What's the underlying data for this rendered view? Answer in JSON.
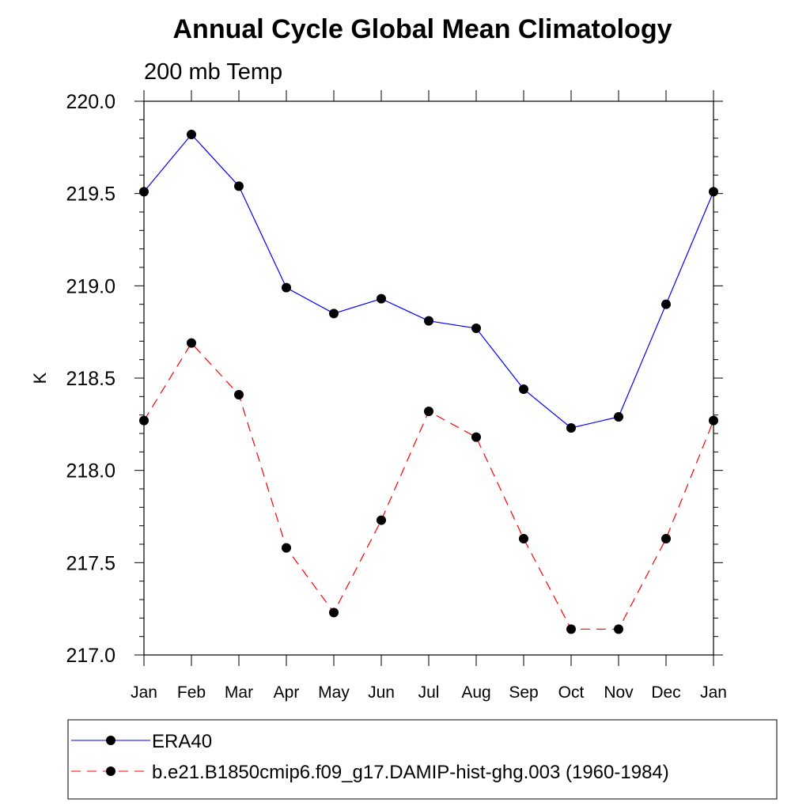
{
  "chart_data": {
    "type": "line",
    "title": "Annual Cycle Global Mean Climatology",
    "subtitle": "200 mb Temp",
    "xlabel": "",
    "ylabel": "K",
    "categories": [
      "Jan",
      "Feb",
      "Mar",
      "Apr",
      "May",
      "Jun",
      "Jul",
      "Aug",
      "Sep",
      "Oct",
      "Nov",
      "Dec",
      "Jan"
    ],
    "ylim": [
      217.0,
      220.0
    ],
    "yticks": [
      "217.0",
      "217.5",
      "218.0",
      "218.5",
      "219.0",
      "219.5",
      "220.0"
    ],
    "grid": false,
    "legend_position": "bottom",
    "series": [
      {
        "name": "ERA40",
        "color": "#0000ff",
        "style": "solid",
        "values": [
          219.51,
          219.82,
          219.54,
          218.99,
          218.85,
          218.93,
          218.81,
          218.77,
          218.44,
          218.23,
          218.29,
          218.9,
          219.51
        ]
      },
      {
        "name": "b.e21.B1850cmip6.f09_g17.DAMIP-hist-ghg.003 (1960-1984)",
        "color": "#ff0000",
        "style": "dashed",
        "values": [
          218.27,
          218.69,
          218.41,
          217.58,
          217.23,
          217.73,
          218.32,
          218.18,
          217.63,
          217.14,
          217.14,
          217.63,
          218.27
        ]
      }
    ]
  }
}
